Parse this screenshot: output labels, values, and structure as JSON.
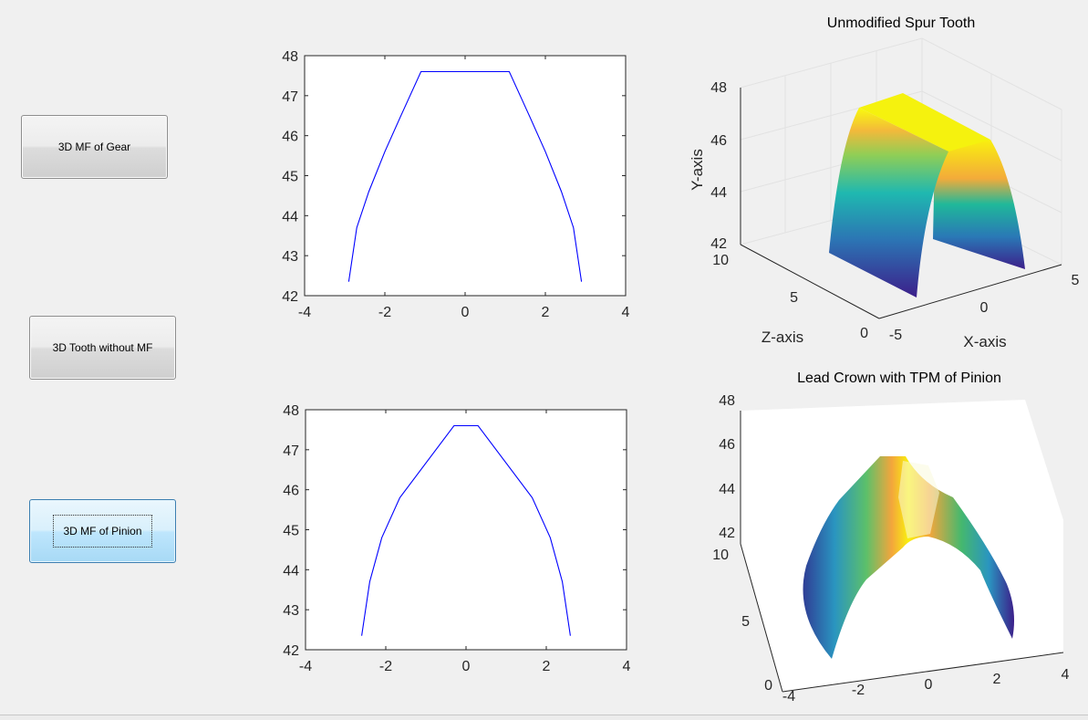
{
  "buttons": {
    "gear": "3D MF of Gear",
    "tooth": "3D Tooth without MF",
    "pinion": "3D MF of Pinion"
  },
  "colors": {
    "profile_line": "#0000ff",
    "viridis_low": "#3c1f8a",
    "viridis_mid": "#1fb8b0",
    "viridis_high": "#f9fb0e",
    "axes_bg": "#ffffff"
  },
  "plot_top_left": {
    "xticks": [
      "-4",
      "-2",
      "0",
      "2",
      "4"
    ],
    "yticks": [
      "42",
      "43",
      "44",
      "45",
      "46",
      "47",
      "48"
    ]
  },
  "plot_bottom_left": {
    "xticks": [
      "-4",
      "-2",
      "0",
      "2",
      "4"
    ],
    "yticks": [
      "42",
      "43",
      "44",
      "45",
      "46",
      "47",
      "48"
    ]
  },
  "plot_top_right": {
    "title": "Unmodified Spur Tooth",
    "ylabel": "Y-axis",
    "zlabel": "Z-axis",
    "xlabel": "X-axis",
    "yticks": [
      "48",
      "46",
      "44",
      "42"
    ],
    "zticks": [
      "10",
      "5",
      "0"
    ],
    "xticks": [
      "-5",
      "0",
      "5"
    ]
  },
  "plot_bottom_right": {
    "title": "Lead Crown with TPM of Pinion",
    "yticks": [
      "48",
      "46",
      "44",
      "42"
    ],
    "zticks": [
      "10",
      "5",
      "0"
    ],
    "xticks": [
      "-4",
      "-2",
      "0",
      "2",
      "4"
    ]
  },
  "chart_data": [
    {
      "type": "line",
      "xlim": [
        -4,
        4
      ],
      "ylim": [
        42,
        48
      ],
      "series": [
        {
          "x": [
            -2.9,
            -2.7,
            -2.4,
            -2.0,
            -1.6,
            -1.1,
            1.1,
            1.6,
            2.0,
            2.4,
            2.7,
            2.9
          ],
          "y": [
            42.35,
            43.7,
            44.6,
            45.6,
            46.5,
            47.6,
            47.6,
            46.5,
            45.6,
            44.6,
            43.7,
            42.35
          ]
        }
      ]
    },
    {
      "type": "line",
      "xlim": [
        -4,
        4
      ],
      "ylim": [
        42,
        48
      ],
      "series": [
        {
          "x": [
            -2.6,
            -2.4,
            -2.1,
            -1.65,
            -0.3,
            0.3,
            1.65,
            2.1,
            2.4,
            2.6
          ],
          "y": [
            42.35,
            43.7,
            44.8,
            45.8,
            47.6,
            47.6,
            45.8,
            44.8,
            43.7,
            42.35
          ]
        }
      ]
    }
  ]
}
